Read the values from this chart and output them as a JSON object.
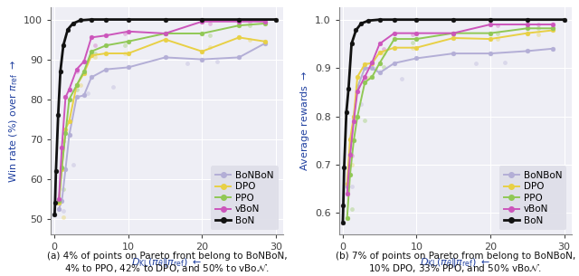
{
  "left": {
    "ylabel": "Win rate (%) over $\\pi_{\\mathrm{ref}}$ $\\rightarrow$",
    "xlabel": "$D_{\\mathrm{KL}}(\\pi_\\theta\\|\\pi_{\\mathrm{ref}})$ $\\leftarrow$",
    "xlim": [
      -0.5,
      31
    ],
    "ylim": [
      46,
      103
    ],
    "yticks": [
      50,
      60,
      70,
      80,
      90,
      100
    ],
    "xticks": [
      0,
      10,
      20,
      30
    ],
    "series": {
      "BoNBoN": {
        "color": "#b3aed6",
        "x": [
          0.6,
          1.0,
          1.5,
          2.0,
          3.0,
          4.0,
          5.0,
          7.0,
          10.0,
          15.0,
          20.0,
          25.0,
          28.5
        ],
        "y": [
          52.5,
          54.5,
          62.5,
          71.0,
          80.5,
          81.0,
          85.5,
          87.5,
          88.0,
          90.5,
          90.0,
          90.5,
          94.0
        ],
        "scatter_x": [
          1.2,
          2.5,
          4.5,
          8.0,
          18.0,
          22.0
        ],
        "scatter_y": [
          52.0,
          63.5,
          81.5,
          83.0,
          89.0,
          89.5
        ]
      },
      "DPO": {
        "color": "#e8d045",
        "x": [
          0.6,
          1.0,
          1.5,
          2.0,
          3.0,
          4.0,
          5.0,
          7.0,
          10.0,
          15.0,
          20.0,
          25.0,
          28.5
        ],
        "y": [
          54.0,
          62.5,
          72.5,
          74.5,
          83.5,
          86.5,
          91.0,
          91.5,
          91.5,
          95.0,
          92.0,
          95.5,
          94.5
        ],
        "scatter_x": [
          1.2,
          3.5,
          5.5,
          9.5,
          21.0,
          26.5
        ],
        "scatter_y": [
          50.5,
          83.5,
          90.5,
          91.5,
          93.0,
          95.0
        ]
      },
      "PPO": {
        "color": "#90c855",
        "x": [
          0.6,
          1.0,
          1.5,
          2.0,
          3.0,
          4.0,
          5.0,
          7.0,
          10.0,
          15.0,
          20.0,
          25.0,
          28.5
        ],
        "y": [
          54.5,
          63.0,
          71.5,
          80.0,
          83.5,
          87.0,
          92.0,
          93.5,
          94.5,
          96.5,
          96.5,
          98.5,
          99.0
        ],
        "scatter_x": [
          1.2,
          3.0,
          5.5,
          9.5,
          21.0,
          26.5
        ],
        "scatter_y": [
          57.5,
          82.5,
          91.5,
          93.5,
          96.0,
          98.5
        ]
      },
      "vBoN": {
        "color": "#cc55bb",
        "x": [
          0.6,
          1.0,
          1.5,
          2.0,
          3.0,
          4.0,
          5.0,
          7.0,
          10.0,
          15.0,
          20.0,
          25.0,
          28.5
        ],
        "y": [
          55.0,
          68.0,
          80.5,
          82.5,
          87.5,
          89.5,
          95.5,
          96.0,
          97.0,
          96.5,
          99.5,
          99.5,
          99.5
        ],
        "scatter_x": [
          1.2,
          3.0,
          5.5,
          9.5,
          21.0,
          26.5
        ],
        "scatter_y": [
          69.5,
          87.0,
          93.5,
          96.5,
          99.0,
          99.5
        ]
      },
      "BoN": {
        "color": "#111111",
        "x": [
          0.02,
          0.08,
          0.2,
          0.5,
          0.8,
          1.2,
          1.8,
          2.5,
          3.5,
          5.0,
          7.0,
          10.0,
          15.0,
          20.0,
          25.0,
          30.0
        ],
        "y": [
          51.0,
          54.0,
          62.0,
          76.0,
          87.0,
          93.5,
          97.5,
          99.0,
          99.8,
          100.0,
          100.0,
          100.0,
          100.0,
          100.0,
          100.0,
          100.0
        ]
      }
    }
  },
  "right": {
    "ylabel": "Average rewards $\\rightarrow$",
    "xlabel": "$D_{\\mathrm{KL}}(\\pi_\\theta\\|\\pi_{\\mathrm{ref}})$ $\\leftarrow$",
    "xlim": [
      -0.5,
      31
    ],
    "ylim": [
      0.555,
      1.025
    ],
    "yticks": [
      0.6,
      0.7,
      0.8,
      0.9,
      1.0
    ],
    "xticks": [
      0,
      10,
      20,
      30
    ],
    "series": {
      "BoNBoN": {
        "color": "#b3aed6",
        "x": [
          0.6,
          1.0,
          1.5,
          2.0,
          3.0,
          4.0,
          5.0,
          7.0,
          10.0,
          15.0,
          20.0,
          25.0,
          28.5
        ],
        "y": [
          0.655,
          0.722,
          0.8,
          0.86,
          0.9,
          0.9,
          0.89,
          0.91,
          0.92,
          0.93,
          0.93,
          0.935,
          0.94
        ],
        "scatter_x": [
          1.2,
          2.5,
          4.5,
          8.0,
          18.0,
          22.0
        ],
        "scatter_y": [
          0.655,
          0.825,
          0.898,
          0.878,
          0.91,
          0.912
        ]
      },
      "DPO": {
        "color": "#e8d045",
        "x": [
          0.6,
          1.0,
          1.5,
          2.0,
          3.0,
          4.0,
          5.0,
          7.0,
          10.0,
          15.0,
          20.0,
          25.0,
          28.5
        ],
        "y": [
          0.66,
          0.752,
          0.8,
          0.882,
          0.908,
          0.91,
          0.932,
          0.942,
          0.942,
          0.962,
          0.96,
          0.972,
          0.978
        ],
        "scatter_x": [
          1.2,
          3.5,
          5.5,
          9.5,
          21.0,
          26.5
        ],
        "scatter_y": [
          0.7,
          0.88,
          0.93,
          0.942,
          0.96,
          0.97
        ]
      },
      "PPO": {
        "color": "#90c855",
        "x": [
          0.6,
          1.0,
          1.5,
          2.0,
          3.0,
          4.0,
          5.0,
          7.0,
          10.0,
          15.0,
          20.0,
          25.0,
          28.5
        ],
        "y": [
          0.59,
          0.68,
          0.75,
          0.8,
          0.87,
          0.882,
          0.91,
          0.96,
          0.96,
          0.972,
          0.972,
          0.982,
          0.982
        ],
        "scatter_x": [
          1.2,
          3.0,
          5.5,
          9.5,
          21.0,
          26.5
        ],
        "scatter_y": [
          0.608,
          0.792,
          0.902,
          0.952,
          0.972,
          0.982
        ]
      },
      "vBoN": {
        "color": "#cc55bb",
        "x": [
          0.6,
          1.0,
          1.5,
          2.0,
          3.0,
          4.0,
          5.0,
          7.0,
          10.0,
          15.0,
          20.0,
          25.0,
          28.5
        ],
        "y": [
          0.64,
          0.72,
          0.79,
          0.852,
          0.882,
          0.912,
          0.95,
          0.972,
          0.972,
          0.972,
          0.99,
          0.99,
          0.99
        ],
        "scatter_x": [
          1.2,
          3.0,
          5.5,
          9.5,
          21.0,
          26.5
        ],
        "scatter_y": [
          0.718,
          0.878,
          0.94,
          0.97,
          0.988,
          0.99
        ]
      },
      "BoN": {
        "color": "#111111",
        "x": [
          0.02,
          0.08,
          0.2,
          0.5,
          0.8,
          1.2,
          1.8,
          2.5,
          3.5,
          5.0,
          7.0,
          10.0,
          15.0,
          20.0,
          25.0,
          30.0
        ],
        "y": [
          0.58,
          0.615,
          0.695,
          0.808,
          0.858,
          0.95,
          0.978,
          0.992,
          0.998,
          1.0,
          1.0,
          1.0,
          1.0,
          1.0,
          1.0,
          1.0
        ]
      }
    }
  },
  "caption_left": "(a) 4% of points on Pareto front belong to BoNBoN,\n4% to PPO, 42% to DPO, and 50% to vBo",
  "caption_left_italic": "N",
  "caption_right": "(b) 7% of points on Pareto from belong to BoNBoN,\n10% DPO, 33% PPO, and 50% vBo",
  "caption_right_italic": "N",
  "axes_facecolor": "#eeeef5",
  "grid_color": "#ffffff",
  "legend_facecolor": "#dedee8",
  "label_color": "#2040a0",
  "tick_color": "#404040",
  "caption_fontsize": 7.5,
  "axis_label_fontsize": 8.0,
  "tick_fontsize": 8.0,
  "legend_fontsize": 7.5
}
